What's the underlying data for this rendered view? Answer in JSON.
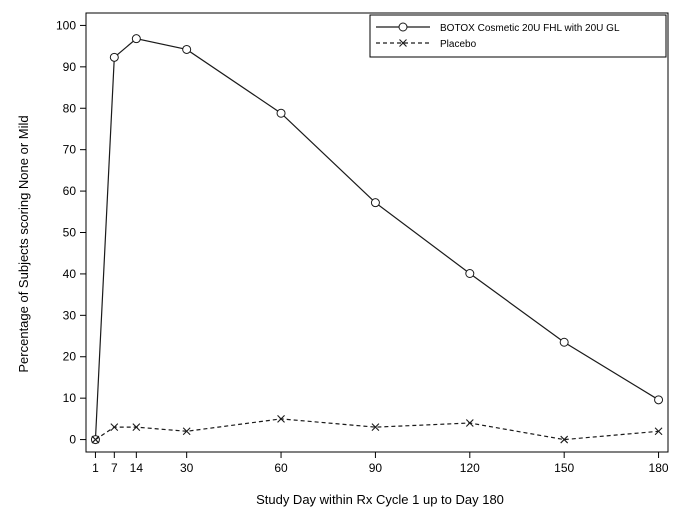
{
  "chart_data": {
    "type": "line",
    "title": "",
    "xlabel": "Study Day within Rx Cycle 1 up to Day 180",
    "ylabel": "Percentage of Subjects scoring None or Mild",
    "x": [
      1,
      7,
      14,
      30,
      60,
      90,
      120,
      150,
      180
    ],
    "x_tick_labels": [
      "1",
      "7",
      "14",
      "30",
      "60",
      "90",
      "120",
      "150",
      "180"
    ],
    "xlim": [
      -2,
      183
    ],
    "ylim": [
      -3,
      103
    ],
    "y_ticks": [
      0,
      10,
      20,
      30,
      40,
      50,
      60,
      70,
      80,
      90,
      100
    ],
    "y_tick_labels": [
      "0",
      "10",
      "20",
      "30",
      "40",
      "50",
      "60",
      "70",
      "80",
      "90",
      "100"
    ],
    "grid": false,
    "legend_position": "top-right",
    "series": [
      {
        "name": "BOTOX Cosmetic 20U FHL with 20U GL",
        "values": [
          0,
          92.3,
          96.8,
          94.2,
          78.8,
          57.2,
          40.1,
          23.5,
          9.6
        ],
        "line_style": "solid",
        "marker": "circle",
        "color": "#1a1a1a"
      },
      {
        "name": "Placebo",
        "values": [
          0,
          3.0,
          3.0,
          2.0,
          5.0,
          3.0,
          4.0,
          0,
          2.0
        ],
        "line_style": "dashed",
        "marker": "x",
        "color": "#1a1a1a"
      }
    ]
  }
}
